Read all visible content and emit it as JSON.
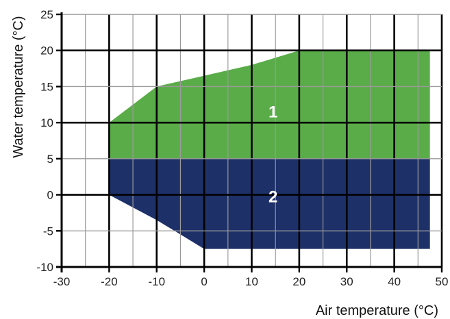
{
  "chart_data": {
    "type": "area",
    "title": "",
    "xlabel": "Air temperature (°C)",
    "ylabel": "Water temperature (°C)",
    "xlim": [
      -30,
      50
    ],
    "ylim": [
      -10,
      25
    ],
    "x_ticks": [
      -30,
      -20,
      -10,
      0,
      10,
      20,
      30,
      40,
      50
    ],
    "y_ticks": [
      -10,
      -5,
      0,
      5,
      10,
      15,
      20,
      25
    ],
    "grid": true,
    "regions": [
      {
        "label": "1",
        "color": "#5aac49",
        "polygon": [
          [
            -20,
            5
          ],
          [
            -20,
            10
          ],
          [
            -10,
            15
          ],
          [
            0,
            16.5
          ],
          [
            10,
            18
          ],
          [
            20,
            20
          ],
          [
            47.5,
            20
          ],
          [
            47.5,
            5
          ]
        ],
        "label_at": [
          14.5,
          11.5
        ]
      },
      {
        "label": "2",
        "color": "#1d3068",
        "polygon": [
          [
            -20,
            0
          ],
          [
            -20,
            5
          ],
          [
            47.5,
            5
          ],
          [
            47.5,
            -7.5
          ],
          [
            0,
            -7.5
          ],
          [
            -10,
            -3.5
          ]
        ],
        "label_at": [
          14.5,
          -0.3
        ]
      }
    ]
  }
}
